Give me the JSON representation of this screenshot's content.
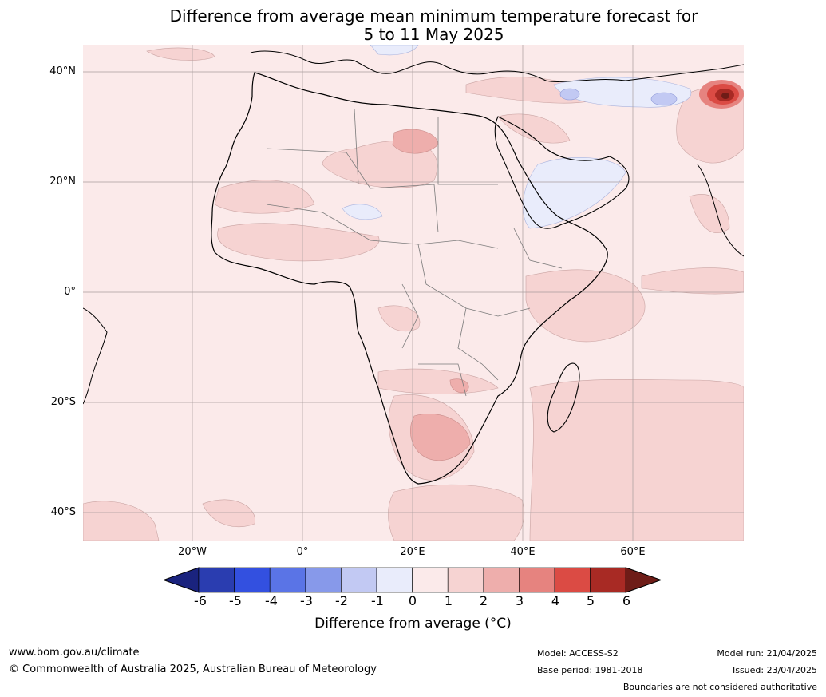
{
  "title_line1": "Difference from average mean minimum temperature forecast for",
  "title_line2": "5 to 11 May 2025",
  "lat_labels": [
    "40°N",
    "20°N",
    "0°",
    "20°S",
    "40°S"
  ],
  "lon_labels": [
    "20°W",
    "0°",
    "20°E",
    "40°E",
    "60°E"
  ],
  "colorbar": {
    "ticks": [
      "-6",
      "-5",
      "-4",
      "-3",
      "-2",
      "-1",
      "0",
      "1",
      "2",
      "3",
      "4",
      "5",
      "6"
    ],
    "colors": [
      "#1a237e",
      "#2a3db0",
      "#3350e0",
      "#5a74e6",
      "#8799ea",
      "#c2c9f3",
      "#e9ecfb",
      "#fbeaea",
      "#f6d3d2",
      "#eeaeac",
      "#e6837f",
      "#db4b44",
      "#a82a24",
      "#6e1c17"
    ],
    "title": "Difference from average (°C)"
  },
  "footer": {
    "website": "www.bom.gov.au/climate",
    "copyright": "© Commonwealth of Australia 2025, Australian Bureau of Meteorology",
    "model": "Model: ACCESS-S2",
    "base_period": "Base period: 1981-2018",
    "model_run": "Model run: 21/04/2025",
    "issued": "Issued: 23/04/2025",
    "boundaries": "Boundaries are not considered authoritative"
  }
}
